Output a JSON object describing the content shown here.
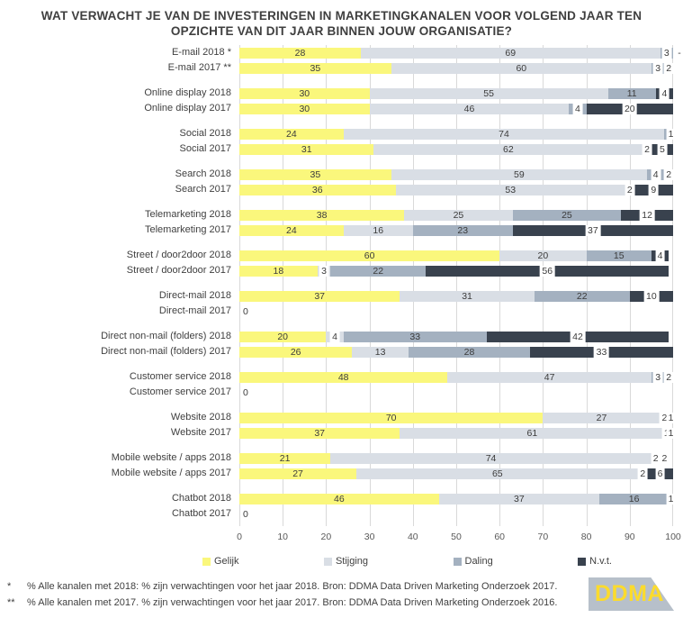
{
  "title": {
    "line1": "WAT VERWACHT JE VAN DE INVESTERINGEN IN MARKETINGKANALEN VOOR VOLGEND JAAR TEN",
    "line2": "OPZICHTE VAN DIT JAAR BINNEN JOUW ORGANISATIE?"
  },
  "colors": {
    "gelijk": "#faf77c",
    "stijging": "#d9dee5",
    "daling": "#a4b1c0",
    "nvt": "#39424e",
    "gridline": "#d9d9d9",
    "text": "#3f3f3f",
    "axis_text": "#595959",
    "logo_bg": "#b7c0ca",
    "logo_text": "#fbdb2d"
  },
  "legend": {
    "items": [
      {
        "label": "Gelijk",
        "key": "gelijk"
      },
      {
        "label": "Stijging",
        "key": "stijging"
      },
      {
        "label": "Daling",
        "key": "daling"
      },
      {
        "label": "N.v.t.",
        "key": "nvt"
      }
    ]
  },
  "chart_data": {
    "type": "bar",
    "orientation": "horizontal",
    "stacked": true,
    "unit": "%",
    "xlim": [
      0,
      100
    ],
    "x_ticks": [
      0,
      10,
      20,
      30,
      40,
      50,
      60,
      70,
      80,
      90,
      100
    ],
    "grid": "vertical",
    "legend_position": "bottom",
    "series_names": [
      "Gelijk",
      "Stijging",
      "Daling",
      "N.v.t."
    ],
    "series_keys": [
      "gelijk",
      "stijging",
      "daling",
      "nvt"
    ],
    "groups": [
      {
        "name": "E-mail",
        "rows": [
          {
            "label": "E-mail 2018 *",
            "values": [
              28,
              69,
              3,
              0
            ],
            "display": [
              "28",
              "69",
              "3",
              "-"
            ]
          },
          {
            "label": "E-mail 2017 **",
            "values": [
              35,
              60,
              3,
              2
            ],
            "display": [
              "35",
              "60",
              "3",
              "2"
            ]
          }
        ]
      },
      {
        "name": "Online display",
        "rows": [
          {
            "label": "Online display 2018",
            "values": [
              30,
              55,
              11,
              4
            ],
            "display": [
              "30",
              "55",
              "11",
              "4"
            ]
          },
          {
            "label": "Online display 2017",
            "values": [
              30,
              46,
              4,
              20
            ],
            "display": [
              "30",
              "46",
              "4",
              "20"
            ]
          }
        ]
      },
      {
        "name": "Social",
        "rows": [
          {
            "label": "Social 2018",
            "values": [
              24,
              74,
              1,
              1
            ],
            "display": [
              "24",
              "74",
              "",
              "1"
            ]
          },
          {
            "label": "Social 2017",
            "values": [
              31,
              62,
              2,
              5
            ],
            "display": [
              "31",
              "62",
              "2",
              "5"
            ]
          }
        ]
      },
      {
        "name": "Search",
        "rows": [
          {
            "label": "Search 2018",
            "values": [
              35,
              59,
              4,
              2
            ],
            "display": [
              "35",
              "59",
              "4",
              "2"
            ]
          },
          {
            "label": "Search 2017",
            "values": [
              36,
              53,
              2,
              9
            ],
            "display": [
              "36",
              "53",
              "2",
              "9"
            ]
          }
        ]
      },
      {
        "name": "Telemarketing",
        "rows": [
          {
            "label": "Telemarketing 2018",
            "values": [
              38,
              25,
              25,
              12
            ],
            "display": [
              "38",
              "25",
              "25",
              "12"
            ]
          },
          {
            "label": "Telemarketing 2017",
            "values": [
              24,
              16,
              23,
              37
            ],
            "display": [
              "24",
              "16",
              "23",
              "37"
            ]
          }
        ]
      },
      {
        "name": "Street / door2door",
        "rows": [
          {
            "label": "Street / door2door 2018",
            "values": [
              60,
              20,
              15,
              4
            ],
            "display": [
              "60",
              "20",
              "15",
              "4"
            ]
          },
          {
            "label": "Street / door2door 2017",
            "values": [
              18,
              3,
              22,
              56
            ],
            "display": [
              "18",
              "3",
              "22",
              "56"
            ]
          }
        ]
      },
      {
        "name": "Direct-mail",
        "rows": [
          {
            "label": "Direct-mail 2018",
            "values": [
              37,
              31,
              22,
              10
            ],
            "display": [
              "37",
              "31",
              "22",
              "10"
            ]
          },
          {
            "label": "Direct-mail 2017",
            "values": [
              0,
              0,
              0,
              0
            ],
            "display": [
              "0",
              "",
              "",
              ""
            ]
          }
        ]
      },
      {
        "name": "Direct non-mail (folders)",
        "rows": [
          {
            "label": "Direct non-mail (folders) 2018",
            "values": [
              20,
              4,
              33,
              42
            ],
            "display": [
              "20",
              "4",
              "33",
              "42"
            ]
          },
          {
            "label": "Direct non-mail (folders)  2017",
            "values": [
              26,
              13,
              28,
              33
            ],
            "display": [
              "26",
              "13",
              "28",
              "33"
            ]
          }
        ]
      },
      {
        "name": "Customer service",
        "rows": [
          {
            "label": "Customer service 2018",
            "values": [
              48,
              47,
              3,
              2
            ],
            "display": [
              "48",
              "47",
              "3",
              "2"
            ]
          },
          {
            "label": "Customer service 2017",
            "values": [
              0,
              0,
              0,
              0
            ],
            "display": [
              "0",
              "",
              "",
              ""
            ]
          }
        ]
      },
      {
        "name": "Website",
        "rows": [
          {
            "label": "Website 2018",
            "values": [
              70,
              27,
              2,
              1
            ],
            "display": [
              "70",
              "27",
              "2",
              "1"
            ]
          },
          {
            "label": "Website 2017",
            "values": [
              37,
              61,
              1,
              1
            ],
            "display": [
              "37",
              "61",
              "1",
              "1"
            ]
          }
        ]
      },
      {
        "name": "Mobile website / apps",
        "rows": [
          {
            "label": "Mobile website / apps 2018",
            "values": [
              21,
              74,
              2,
              2
            ],
            "display": [
              "21",
              "74",
              "2",
              "2"
            ]
          },
          {
            "label": "Mobile website / apps 2017",
            "values": [
              27,
              65,
              2,
              6
            ],
            "display": [
              "27",
              "65",
              "2",
              "6"
            ]
          }
        ]
      },
      {
        "name": "Chatbot",
        "rows": [
          {
            "label": "Chatbot 2018",
            "values": [
              46,
              37,
              16,
              1
            ],
            "display": [
              "46",
              "37",
              "16",
              "1"
            ]
          },
          {
            "label": "Chatbot 2017",
            "values": [
              0,
              0,
              0,
              0
            ],
            "display": [
              "0",
              "",
              "",
              ""
            ]
          }
        ]
      }
    ]
  },
  "footnotes": [
    {
      "marker": "*",
      "text": "% Alle kanalen met 2018: % zijn verwachtingen voor het jaar 2018. Bron: DDMA Data Driven Marketing Onderzoek 2017."
    },
    {
      "marker": "**",
      "text": "% Alle kanalen met 2017. % zijn verwachtingen voor het jaar 2017. Bron: DDMA Data Driven Marketing Onderzoek 2016."
    }
  ],
  "logo": {
    "text": "DDMA"
  }
}
